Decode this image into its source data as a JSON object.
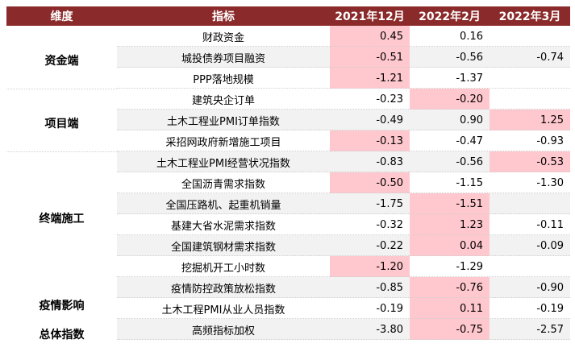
{
  "header": {
    "dimension": "维度",
    "indicator": "指标",
    "col1": "2021年12月",
    "col2": "2022年2月",
    "col3": "2022年3月"
  },
  "groups": [
    {
      "label": "资金端"
    },
    {
      "label": "项目端"
    },
    {
      "label": "终端施工"
    },
    {
      "label": "疫情影响"
    },
    {
      "label": "总体指数"
    }
  ],
  "rows": [
    {
      "indicator": "财政资金",
      "v1": "0.45",
      "v2": "0.16",
      "v3": ""
    },
    {
      "indicator": "城投债券项目融资",
      "v1": "-0.51",
      "v2": "-0.56",
      "v3": "-0.74"
    },
    {
      "indicator": "PPP落地规模",
      "v1": "-1.21",
      "v2": "-1.37",
      "v3": ""
    },
    {
      "indicator": "建筑央企订单",
      "v1": "-0.23",
      "v2": "-0.20",
      "v3": ""
    },
    {
      "indicator": "土木工程业PMI订单指数",
      "v1": "-0.49",
      "v2": "0.90",
      "v3": "1.25"
    },
    {
      "indicator": "采招网政府新增施工项目",
      "v1": "-0.13",
      "v2": "-0.47",
      "v3": "-0.93"
    },
    {
      "indicator": "土木工程业PMI经营状况指数",
      "v1": "-0.83",
      "v2": "-0.56",
      "v3": "-0.53"
    },
    {
      "indicator": "全国沥青需求指数",
      "v1": "-0.50",
      "v2": "-1.15",
      "v3": "-1.30"
    },
    {
      "indicator": "全国压路机、起重机销量",
      "v1": "-1.75",
      "v2": "-1.51",
      "v3": ""
    },
    {
      "indicator": "基建大省水泥需求指数",
      "v1": "-0.32",
      "v2": "1.23",
      "v3": "-0.11"
    },
    {
      "indicator": "全国建筑钢材需求指数",
      "v1": "-0.22",
      "v2": "0.04",
      "v3": "-0.09"
    },
    {
      "indicator": "挖掘机开工小时数",
      "v1": "-1.20",
      "v2": "-1.29",
      "v3": ""
    },
    {
      "indicator": "疫情防控政策放松指数",
      "v1": "-0.85",
      "v2": "-0.76",
      "v3": "-0.90"
    },
    {
      "indicator": "土木工程PMI从业人员指数",
      "v1": "-0.19",
      "v2": "0.11",
      "v3": "-0.19"
    },
    {
      "indicator": "高频指标加权",
      "v1": "-3.80",
      "v2": "-0.75",
      "v3": "-2.57"
    }
  ],
  "colors": {
    "header_bg": "#8b2a2a",
    "highlight": "#ffc7ce",
    "shade": "#f2f2f2"
  }
}
